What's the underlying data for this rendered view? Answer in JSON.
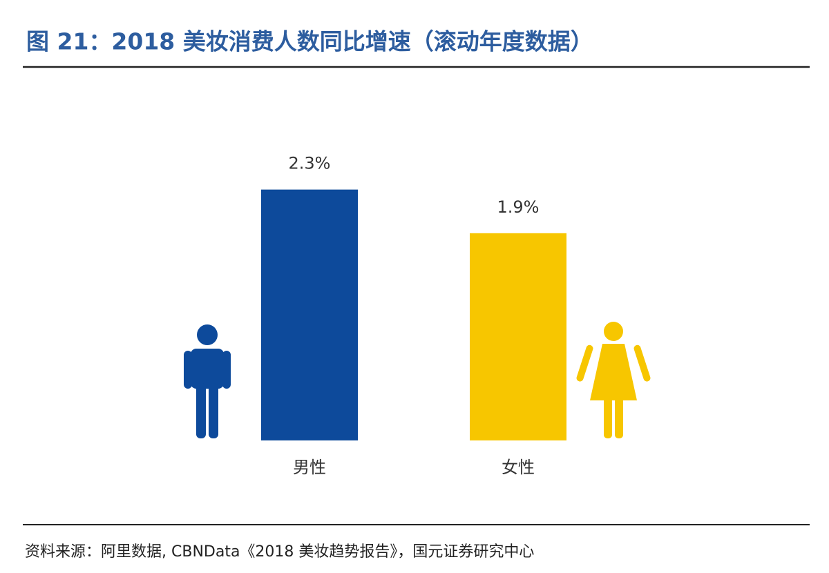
{
  "chart_data": {
    "type": "bar",
    "title": "图 21：2018 美妆消费人数同比增速（滚动年度数据）",
    "categories": [
      "男性",
      "女性"
    ],
    "values": [
      2.3,
      1.9
    ],
    "value_labels": [
      "2.3%",
      "1.9%"
    ],
    "colors": [
      "#0d4a9b",
      "#f7c600"
    ],
    "source": "资料来源：阿里数据, CBNData《2018 美妆趋势报告》，国元证券研究中心"
  }
}
